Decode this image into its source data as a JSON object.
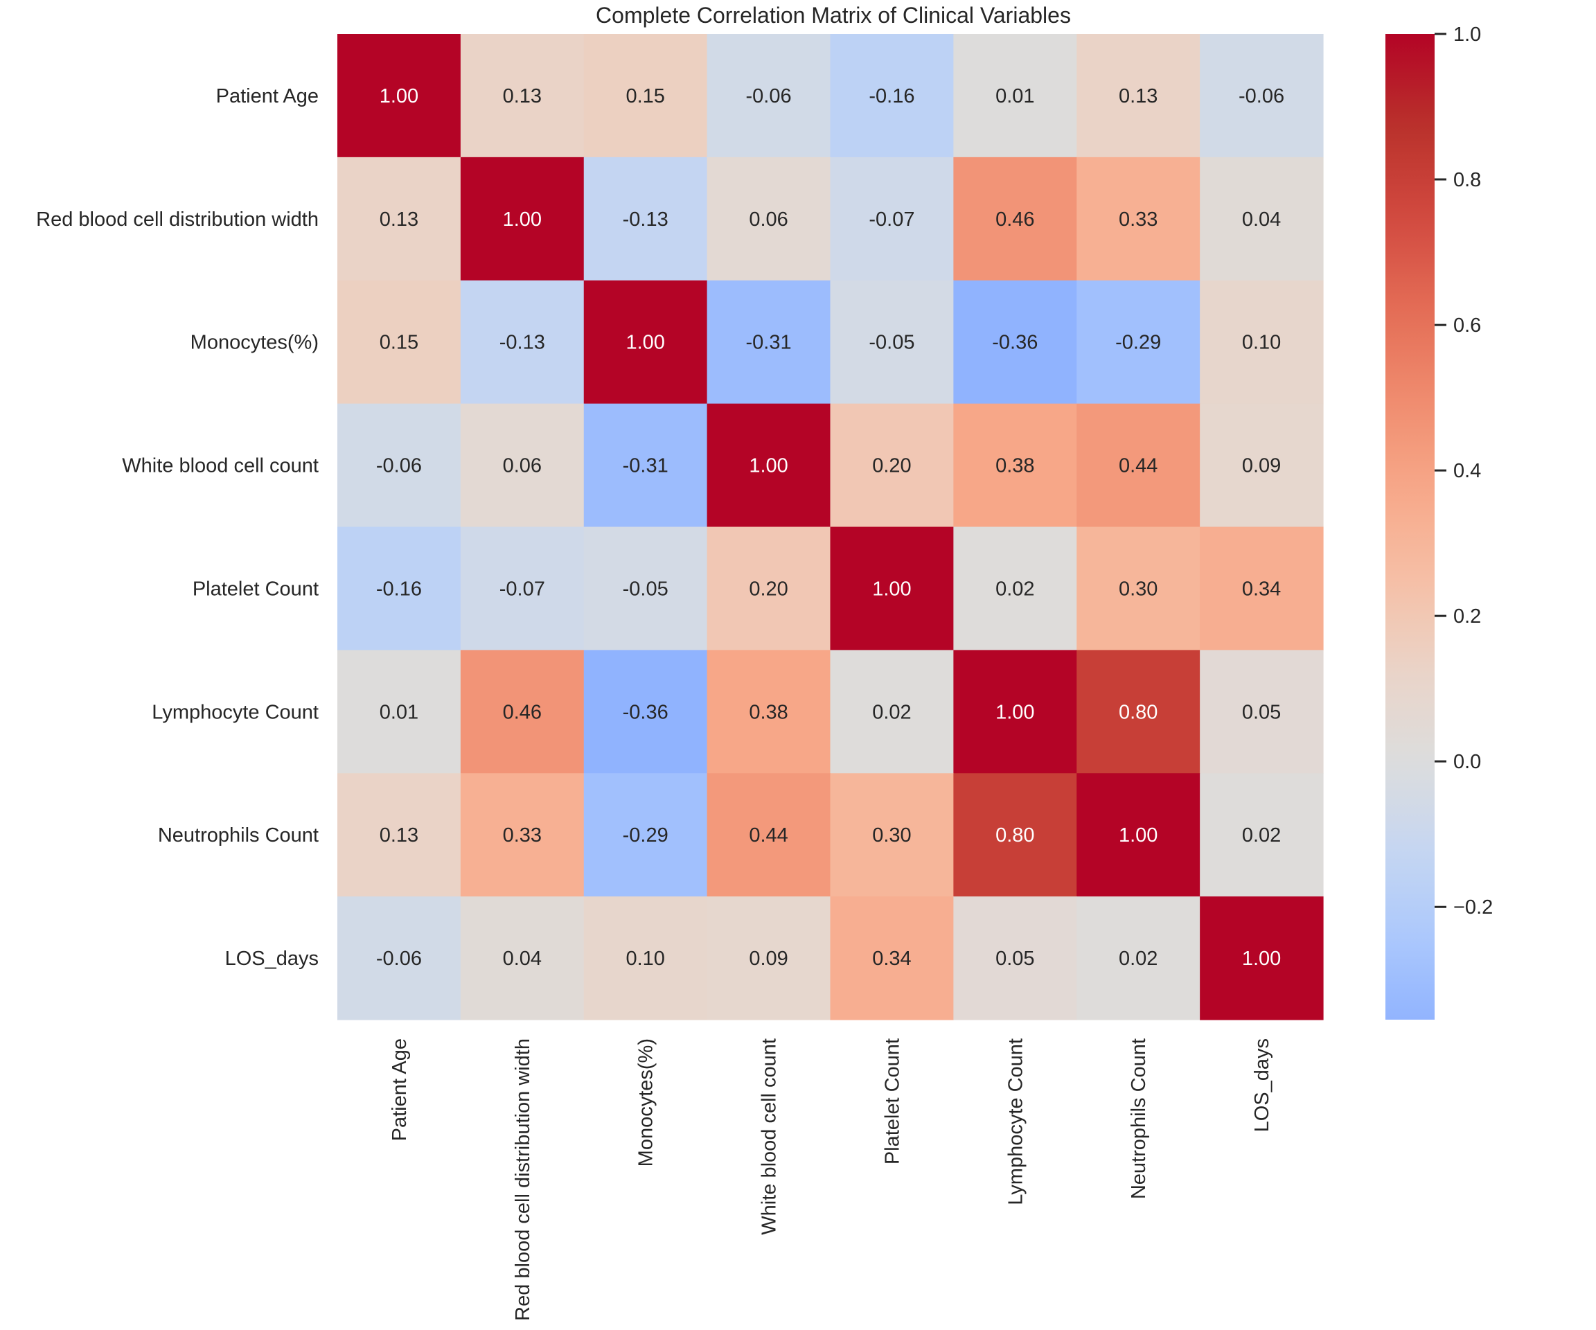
{
  "chart_data": {
    "type": "heatmap",
    "title": "Complete Correlation Matrix of Clinical Variables",
    "xlabel": "",
    "ylabel": "",
    "row_labels": [
      "Patient Age",
      "Red blood cell distribution width",
      "Monocytes(%)",
      "White blood cell count",
      "Platelet Count",
      "Lymphocyte Count",
      "Neutrophils Count",
      "LOS_days"
    ],
    "col_labels": [
      "Patient Age",
      "Red blood cell distribution width",
      "Monocytes(%)",
      "White blood cell count",
      "Platelet Count",
      "Lymphocyte Count",
      "Neutrophils Count",
      "LOS_days"
    ],
    "values": [
      [
        1.0,
        0.13,
        0.15,
        -0.06,
        -0.16,
        0.01,
        0.13,
        -0.06
      ],
      [
        0.13,
        1.0,
        -0.13,
        0.06,
        -0.07,
        0.46,
        0.33,
        0.04
      ],
      [
        0.15,
        -0.13,
        1.0,
        -0.31,
        -0.05,
        -0.36,
        -0.29,
        0.1
      ],
      [
        -0.06,
        0.06,
        -0.31,
        1.0,
        0.2,
        0.38,
        0.44,
        0.09
      ],
      [
        -0.16,
        -0.07,
        -0.05,
        0.2,
        1.0,
        0.02,
        0.3,
        0.34
      ],
      [
        0.01,
        0.46,
        -0.36,
        0.38,
        0.02,
        1.0,
        0.8,
        0.05
      ],
      [
        0.13,
        0.33,
        -0.29,
        0.44,
        0.3,
        0.8,
        1.0,
        0.02
      ],
      [
        -0.06,
        0.04,
        0.1,
        0.09,
        0.34,
        0.05,
        0.02,
        1.0
      ]
    ],
    "annotation_format": "0.00",
    "colormap": "coolwarm",
    "center": 0.0,
    "vmin": -0.355,
    "vmax": 1.0,
    "colorbar": {
      "ticks": [
        1.0,
        0.8,
        0.6,
        0.4,
        0.2,
        0.0,
        -0.2
      ],
      "tick_labels": [
        "1.0",
        "0.8",
        "0.6",
        "0.4",
        "0.2",
        "0.0",
        "−0.2"
      ],
      "placement": "right"
    },
    "colors": {
      "min_negative": "#3b4cc0",
      "neutral": "#dddcdc",
      "max_positive": "#b40426",
      "text_dark": "#262626",
      "text_light": "#ffffff"
    }
  }
}
